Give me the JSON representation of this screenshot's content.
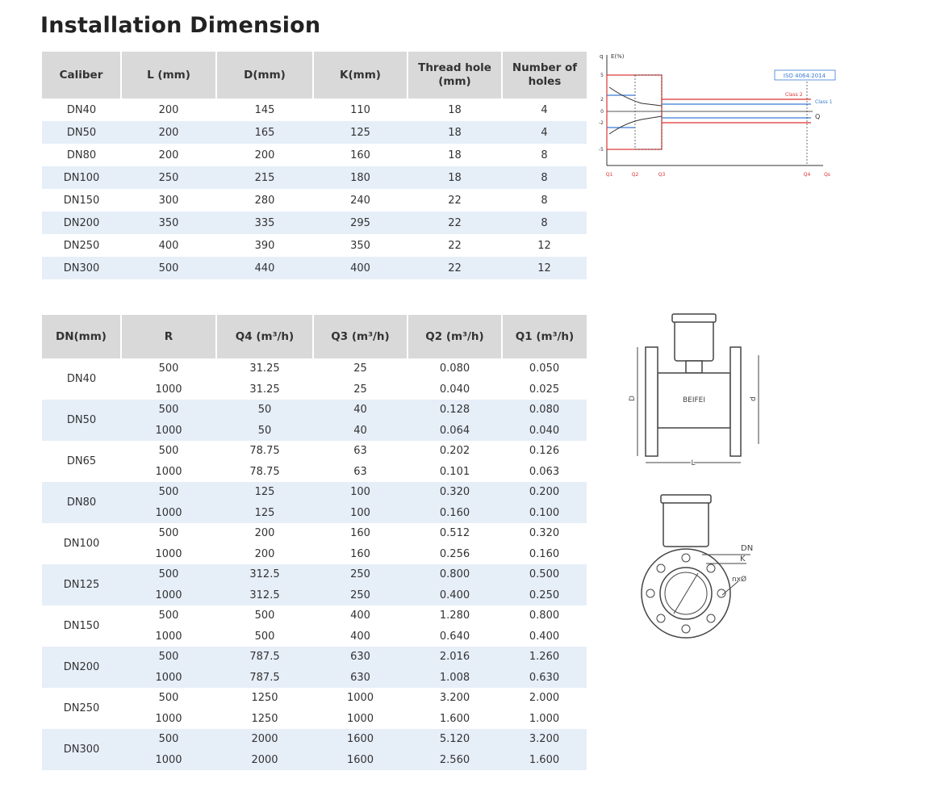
{
  "title": "Installation Dimension",
  "table1": {
    "header": [
      "Caliber",
      "L (mm)",
      "D(mm)",
      "K(mm)",
      "Thread hole (mm)",
      "Number of holes"
    ],
    "rows": [
      [
        "DN40",
        "200",
        "145",
        "110",
        "18",
        "4"
      ],
      [
        "DN50",
        "200",
        "165",
        "125",
        "18",
        "4"
      ],
      [
        "DN80",
        "200",
        "200",
        "160",
        "18",
        "8"
      ],
      [
        "DN100",
        "250",
        "215",
        "180",
        "18",
        "8"
      ],
      [
        "DN150",
        "300",
        "280",
        "240",
        "22",
        "8"
      ],
      [
        "DN200",
        "350",
        "335",
        "295",
        "22",
        "8"
      ],
      [
        "DN250",
        "400",
        "390",
        "350",
        "22",
        "12"
      ],
      [
        "DN300",
        "500",
        "440",
        "400",
        "22",
        "12"
      ]
    ]
  },
  "table2": {
    "header": [
      "DN(mm)",
      "R",
      "Q4 (m³/h)",
      "Q3 (m³/h)",
      "Q2 (m³/h)",
      "Q1 (m³/h)"
    ],
    "groups": [
      {
        "dn": "DN40",
        "rows": [
          [
            "500",
            "31.25",
            "25",
            "0.080",
            "0.050"
          ],
          [
            "1000",
            "31.25",
            "25",
            "0.040",
            "0.025"
          ]
        ]
      },
      {
        "dn": "DN50",
        "rows": [
          [
            "500",
            "50",
            "40",
            "0.128",
            "0.080"
          ],
          [
            "1000",
            "50",
            "40",
            "0.064",
            "0.040"
          ]
        ]
      },
      {
        "dn": "DN65",
        "rows": [
          [
            "500",
            "78.75",
            "63",
            "0.202",
            "0.126"
          ],
          [
            "1000",
            "78.75",
            "63",
            "0.101",
            "0.063"
          ]
        ]
      },
      {
        "dn": "DN80",
        "rows": [
          [
            "500",
            "125",
            "100",
            "0.320",
            "0.200"
          ],
          [
            "1000",
            "125",
            "100",
            "0.160",
            "0.100"
          ]
        ]
      },
      {
        "dn": "DN100",
        "rows": [
          [
            "500",
            "200",
            "160",
            "0.512",
            "0.320"
          ],
          [
            "1000",
            "200",
            "160",
            "0.256",
            "0.160"
          ]
        ]
      },
      {
        "dn": "DN125",
        "rows": [
          [
            "500",
            "312.5",
            "250",
            "0.800",
            "0.500"
          ],
          [
            "1000",
            "312.5",
            "250",
            "0.400",
            "0.250"
          ]
        ]
      },
      {
        "dn": "DN150",
        "rows": [
          [
            "500",
            "500",
            "400",
            "1.280",
            "0.800"
          ],
          [
            "1000",
            "500",
            "400",
            "0.640",
            "0.400"
          ]
        ]
      },
      {
        "dn": "DN200",
        "rows": [
          [
            "500",
            "787.5",
            "630",
            "2.016",
            "1.260"
          ],
          [
            "1000",
            "787.5",
            "630",
            "1.008",
            "0.630"
          ]
        ]
      },
      {
        "dn": "DN250",
        "rows": [
          [
            "500",
            "1250",
            "1000",
            "3.200",
            "2.000"
          ],
          [
            "1000",
            "1250",
            "1000",
            "1.600",
            "1.000"
          ]
        ]
      },
      {
        "dn": "DN300",
        "rows": [
          [
            "500",
            "2000",
            "1600",
            "5.120",
            "3.200"
          ],
          [
            "1000",
            "2000",
            "1600",
            "2.560",
            "1.600"
          ]
        ]
      }
    ]
  },
  "error_chart": {
    "y_axis": "E(%)",
    "q_label": "q",
    "yticks": [
      "5",
      "2",
      "0",
      "-2",
      "-5"
    ],
    "badge": "ISO 4064:2014",
    "class2": "Class 2",
    "class1": "Class 1",
    "flow_label": "Q",
    "xticks": [
      "Q1",
      "Q2",
      "Q3",
      "Q4",
      "Qs"
    ]
  },
  "drawing": {
    "brand": "BEIFEI",
    "D": "D",
    "d": "d",
    "L": "L",
    "DN": "DN",
    "K": "K",
    "holes": "nxØ"
  }
}
